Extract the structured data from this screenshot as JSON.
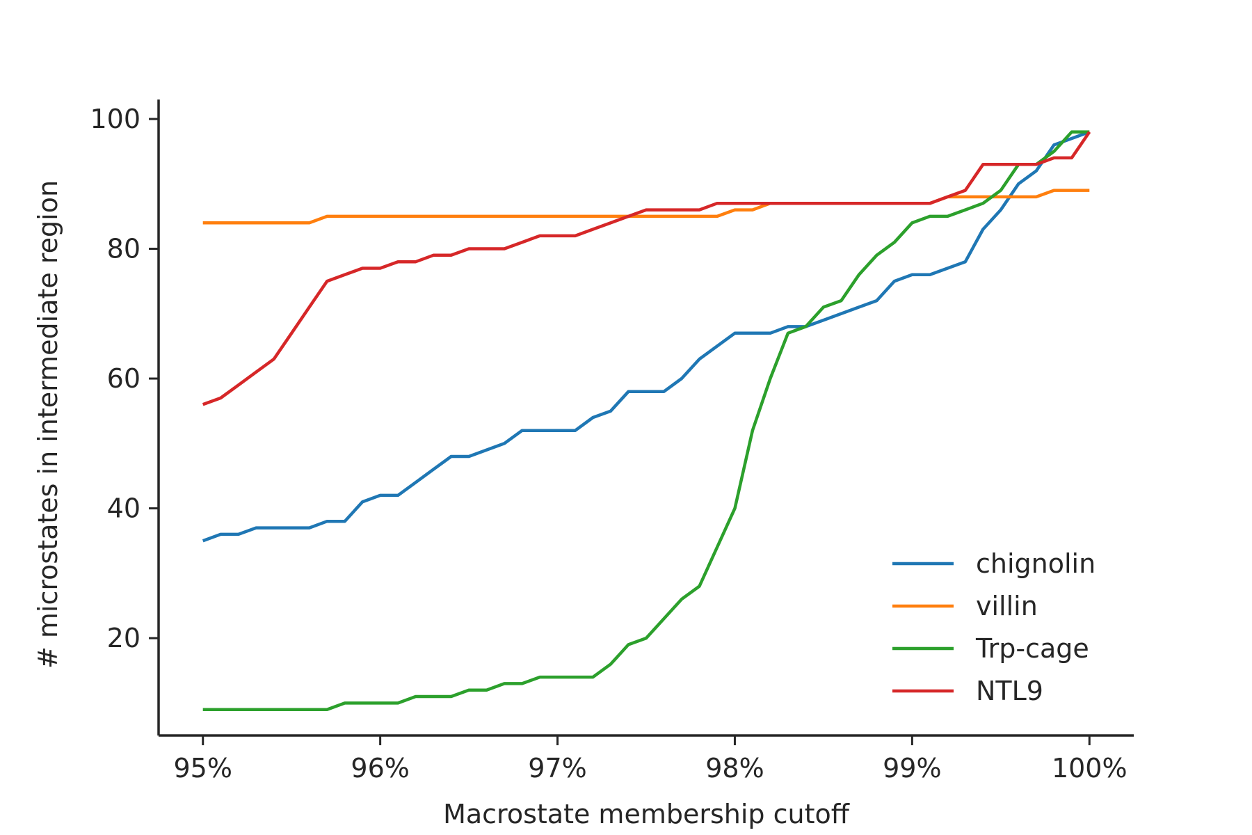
{
  "chart_data": {
    "type": "line",
    "title": "",
    "xlabel": "Macrostate membership cutoff",
    "ylabel": "# microstates in intermediate region",
    "xlim": [
      0.9475,
      1.0025
    ],
    "ylim": [
      5,
      103
    ],
    "xticks": [
      0.95,
      0.96,
      0.97,
      0.98,
      0.99,
      1.0
    ],
    "xtick_labels": [
      "95%",
      "96%",
      "97%",
      "98%",
      "99%",
      "100%"
    ],
    "yticks": [
      20,
      40,
      60,
      80,
      100
    ],
    "ytick_labels": [
      "20",
      "40",
      "60",
      "80",
      "100"
    ],
    "grid": false,
    "legend_position": "lower-right",
    "x": [
      0.95,
      0.951,
      0.952,
      0.953,
      0.954,
      0.955,
      0.956,
      0.957,
      0.958,
      0.959,
      0.96,
      0.961,
      0.962,
      0.963,
      0.964,
      0.965,
      0.966,
      0.967,
      0.968,
      0.969,
      0.97,
      0.971,
      0.972,
      0.973,
      0.974,
      0.975,
      0.976,
      0.977,
      0.978,
      0.979,
      0.98,
      0.981,
      0.982,
      0.983,
      0.984,
      0.985,
      0.986,
      0.987,
      0.988,
      0.989,
      0.99,
      0.991,
      0.992,
      0.993,
      0.994,
      0.995,
      0.996,
      0.997,
      0.998,
      0.999,
      1.0
    ],
    "series": [
      {
        "name": "chignolin",
        "color": "#1f77b4",
        "values": [
          35,
          36,
          36,
          37,
          37,
          37,
          37,
          38,
          38,
          41,
          42,
          42,
          44,
          46,
          48,
          48,
          49,
          50,
          52,
          52,
          52,
          52,
          54,
          55,
          58,
          58,
          58,
          60,
          63,
          65,
          67,
          67,
          67,
          68,
          68,
          69,
          70,
          71,
          72,
          75,
          76,
          76,
          77,
          78,
          83,
          86,
          90,
          92,
          96,
          97,
          98
        ]
      },
      {
        "name": "villin",
        "color": "#ff7f0e",
        "values": [
          84,
          84,
          84,
          84,
          84,
          84,
          84,
          85,
          85,
          85,
          85,
          85,
          85,
          85,
          85,
          85,
          85,
          85,
          85,
          85,
          85,
          85,
          85,
          85,
          85,
          85,
          85,
          85,
          85,
          85,
          86,
          86,
          87,
          87,
          87,
          87,
          87,
          87,
          87,
          87,
          87,
          87,
          88,
          88,
          88,
          88,
          88,
          88,
          89,
          89,
          89
        ]
      },
      {
        "name": "Trp-cage",
        "color": "#2ca02c",
        "values": [
          9,
          9,
          9,
          9,
          9,
          9,
          9,
          9,
          10,
          10,
          10,
          10,
          11,
          11,
          11,
          12,
          12,
          13,
          13,
          14,
          14,
          14,
          14,
          16,
          19,
          20,
          23,
          26,
          28,
          34,
          40,
          52,
          60,
          67,
          68,
          71,
          72,
          76,
          79,
          81,
          84,
          85,
          85,
          86,
          87,
          89,
          93,
          93,
          95,
          98,
          98
        ]
      },
      {
        "name": "NTL9",
        "color": "#d62728",
        "values": [
          56,
          57,
          59,
          61,
          63,
          67,
          71,
          75,
          76,
          77,
          77,
          78,
          78,
          79,
          79,
          80,
          80,
          80,
          81,
          82,
          82,
          82,
          83,
          84,
          85,
          86,
          86,
          86,
          86,
          87,
          87,
          87,
          87,
          87,
          87,
          87,
          87,
          87,
          87,
          87,
          87,
          87,
          88,
          89,
          93,
          93,
          93,
          93,
          94,
          94,
          98
        ]
      }
    ]
  }
}
